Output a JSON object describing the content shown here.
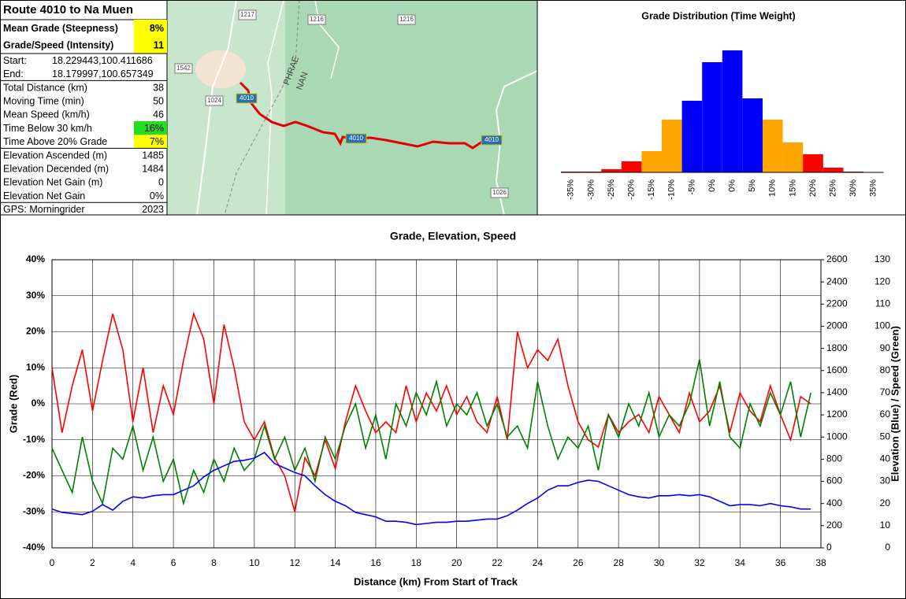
{
  "stats": {
    "title": "Route 4010 to Na Muen",
    "rows": [
      {
        "label": "Mean Grade (Steepness)",
        "value": "8%",
        "highlight": "#ffff00"
      },
      {
        "label": "Grade/Speed (Intensity)",
        "value": "11",
        "highlight": "#ffff00"
      },
      {
        "label": "Start:",
        "value": "18.229443,100.411686"
      },
      {
        "label": "End:",
        "value": "18.179997,100.657349"
      },
      {
        "label": "Total Distance (km)",
        "value": "38"
      },
      {
        "label": "Moving Time (min)",
        "value": "50"
      },
      {
        "label": "Mean Speed (km/h)",
        "value": "46"
      },
      {
        "label": "Time Below 30 km/h",
        "value": "16%",
        "highlight": "#22dd22"
      },
      {
        "label": "Time Above 20% Grade",
        "value": "7%",
        "highlight": "#ffff00"
      },
      {
        "label": "Elevation Ascended (m)",
        "value": "1485"
      },
      {
        "label": "Elevation Decended (m)",
        "value": "1484"
      },
      {
        "label": "Elevation Net Gain (m)",
        "value": "0"
      },
      {
        "label": "Elevation Net Gain",
        "value": "0%"
      },
      {
        "label": "GPS: Morningrider",
        "value": "2023"
      }
    ]
  },
  "map": {
    "labels": [
      "1217",
      "1216",
      "1216",
      "1542",
      "1024",
      "PHRAE",
      "NAN",
      "4010",
      "4010",
      "4010",
      "1026"
    ]
  },
  "chart_data": [
    {
      "type": "bar",
      "title": "Grade Distribution (Time Weight)",
      "categories": [
        "-35%",
        "-30%",
        "-25%",
        "-20%",
        "-15%",
        "-10%",
        "-5%",
        "0%",
        "0%",
        "5%",
        "10%",
        "15%",
        "20%",
        "25%",
        "30%",
        "35%"
      ],
      "values": [
        1,
        1,
        4,
        14,
        27,
        67,
        91,
        140,
        155,
        94,
        67,
        38,
        23,
        6,
        1,
        0
      ],
      "colors": [
        "#ff0000",
        "#ff0000",
        "#ff0000",
        "#ff0000",
        "#ffa500",
        "#ffa500",
        "#0000ff",
        "#0000ff",
        "#0000ff",
        "#0000ff",
        "#ffa500",
        "#ffa500",
        "#ff0000",
        "#ff0000",
        "#ff0000",
        "#ff0000"
      ]
    },
    {
      "type": "line",
      "title": "Grade, Elevation, Speed",
      "xlabel": "Distance (km) From Start of Track",
      "ylabel": "Grade (Red)",
      "y2label": "Elevation (Blue) / Speed (Green)",
      "xlim": [
        0,
        38
      ],
      "xticks": [
        0,
        2,
        4,
        6,
        8,
        10,
        12,
        14,
        16,
        18,
        20,
        22,
        24,
        26,
        28,
        30,
        32,
        34,
        36,
        38
      ],
      "ylim": [
        -40,
        40
      ],
      "yticks": [
        {
          "value": -40,
          "label": "-40%"
        },
        {
          "value": -30,
          "label": "-30%"
        },
        {
          "value": -20,
          "label": "-20%"
        },
        {
          "value": -10,
          "label": "-10%"
        },
        {
          "value": 0,
          "label": "0%"
        },
        {
          "value": 10,
          "label": "10%"
        },
        {
          "value": 20,
          "label": "20%"
        },
        {
          "value": 30,
          "label": "30%"
        },
        {
          "value": 40,
          "label": "40%"
        }
      ],
      "y2lim": [
        0,
        2600
      ],
      "y2ticks": [
        0,
        200,
        400,
        600,
        800,
        1000,
        1200,
        1400,
        1600,
        1800,
        2000,
        2200,
        2400,
        2600
      ],
      "y3lim": [
        0,
        130
      ],
      "y3ticks": [
        0,
        10,
        20,
        30,
        40,
        50,
        60,
        70,
        80,
        90,
        100,
        110,
        120,
        130
      ],
      "grid": true,
      "x": [
        0,
        0.5,
        1,
        1.5,
        2,
        2.5,
        3,
        3.5,
        4,
        4.5,
        5,
        5.5,
        6,
        6.5,
        7,
        7.5,
        8,
        8.5,
        9,
        9.5,
        10,
        10.5,
        11,
        11.5,
        12,
        12.5,
        13,
        13.5,
        14,
        14.5,
        15,
        15.5,
        16,
        16.5,
        17,
        17.5,
        18,
        18.5,
        19,
        19.5,
        20,
        20.5,
        21,
        21.5,
        22,
        22.5,
        23,
        23.5,
        24,
        24.5,
        25,
        25.5,
        26,
        26.5,
        27,
        27.5,
        28,
        28.5,
        29,
        29.5,
        30,
        30.5,
        31,
        31.5,
        32,
        32.5,
        33,
        33.5,
        34,
        34.5,
        35,
        35.5,
        36,
        36.5,
        37,
        37.5
      ],
      "series": [
        {
          "name": "Grade",
          "color": "#ff0000",
          "axis": "y",
          "values": [
            10,
            -8,
            5,
            15,
            -2,
            12,
            25,
            15,
            -5,
            10,
            -8,
            5,
            -3,
            12,
            25,
            18,
            0,
            22,
            10,
            -5,
            -10,
            -5,
            -15,
            -20,
            -30,
            -15,
            -20,
            -10,
            -18,
            -5,
            5,
            -2,
            -8,
            -5,
            -8,
            5,
            -5,
            3,
            -2,
            5,
            -3,
            2,
            -5,
            -8,
            2,
            -10,
            20,
            10,
            15,
            12,
            18,
            5,
            -5,
            -10,
            -12,
            -3,
            -8,
            -5,
            -3,
            -8,
            2,
            -3,
            -8,
            3,
            -5,
            -2,
            5,
            -8,
            3,
            -2,
            -5,
            5,
            -3,
            -10,
            2,
            0
          ]
        },
        {
          "name": "Speed",
          "color": "#008000",
          "axis": "y3",
          "values": [
            45,
            35,
            25,
            50,
            30,
            20,
            45,
            40,
            55,
            35,
            50,
            30,
            40,
            20,
            35,
            25,
            40,
            30,
            45,
            35,
            40,
            55,
            40,
            50,
            35,
            45,
            30,
            50,
            40,
            55,
            65,
            45,
            60,
            40,
            65,
            55,
            70,
            60,
            75,
            55,
            65,
            60,
            70,
            55,
            65,
            50,
            55,
            45,
            75,
            55,
            40,
            50,
            45,
            55,
            35,
            60,
            50,
            65,
            55,
            70,
            50,
            60,
            55,
            65,
            85,
            55,
            75,
            50,
            45,
            65,
            55,
            70,
            60,
            75,
            50,
            70
          ]
        },
        {
          "name": "Elevation",
          "color": "#0000ff",
          "axis": "y2",
          "values": [
            350,
            320,
            310,
            300,
            330,
            390,
            340,
            420,
            460,
            450,
            470,
            480,
            480,
            520,
            560,
            640,
            700,
            740,
            780,
            790,
            810,
            860,
            760,
            720,
            680,
            650,
            560,
            480,
            420,
            380,
            320,
            300,
            280,
            240,
            240,
            230,
            210,
            220,
            230,
            230,
            240,
            240,
            250,
            260,
            260,
            290,
            340,
            400,
            450,
            520,
            560,
            560,
            590,
            610,
            600,
            560,
            520,
            480,
            460,
            450,
            470,
            470,
            480,
            470,
            480,
            460,
            420,
            380,
            390,
            390,
            380,
            400,
            380,
            370,
            350,
            350
          ]
        }
      ]
    }
  ]
}
